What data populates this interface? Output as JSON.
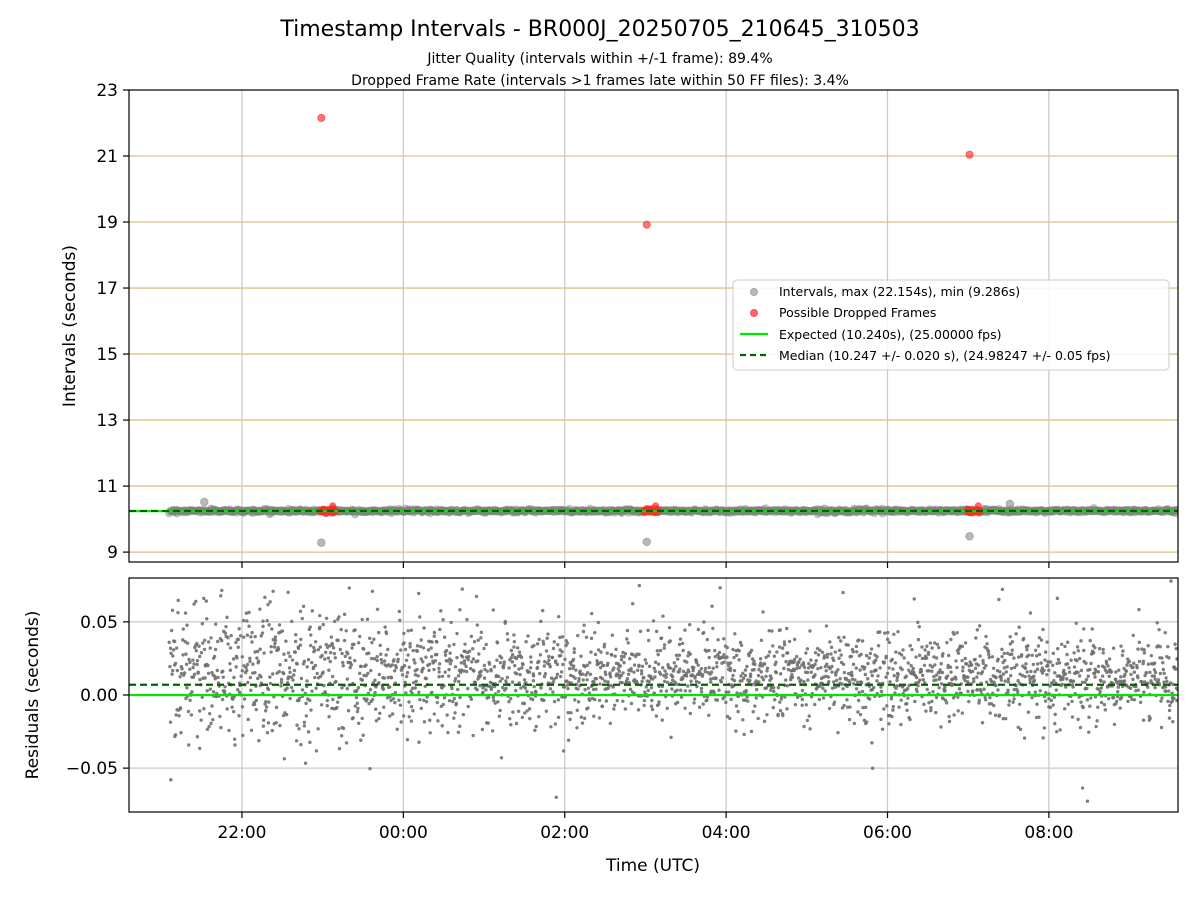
{
  "chart_data": [
    {
      "type": "scatter",
      "title": "Timestamp Intervals - BR000J_20250705_210645_310503",
      "subtitle_lines": [
        "Jitter Quality (intervals within +/-1 frame): 89.4%",
        "Dropped Frame Rate (intervals >1 frames late within 50 FF files): 3.4%"
      ],
      "ylabel": "Intervals (seconds)",
      "ylim": [
        8.7,
        23
      ],
      "yticks": [
        "9",
        "11",
        "13",
        "15",
        "17",
        "19",
        "21",
        "23"
      ],
      "y_gridlines": [
        9,
        11,
        13,
        15,
        17,
        19,
        21
      ],
      "x_range_hours": [
        20.6,
        33.6
      ],
      "series": [
        {
          "name": "Intervals, max (22.154s), min (9.286s)",
          "color": "#808080",
          "time_start": "21:06",
          "time_end": "09:36",
          "typical_value": 10.247,
          "typical_spread": 0.05,
          "outliers": [
            {
              "time": "22:59",
              "value": 9.286
            },
            {
              "time": "03:01",
              "value": 9.31
            },
            {
              "time": "07:01",
              "value": 9.48
            },
            {
              "time": "21:32",
              "value": 10.52
            },
            {
              "time": "07:31",
              "value": 10.46
            }
          ]
        },
        {
          "name": "Possible Dropped Frames",
          "color": "#ff2a2a",
          "points": [
            {
              "time": "22:59",
              "value": 22.154
            },
            {
              "time": "03:01",
              "value": 18.92
            },
            {
              "time": "07:01",
              "value": 21.04
            }
          ],
          "clusters": [
            {
              "time_start": "22:58",
              "time_end": "23:09",
              "value": 10.26
            },
            {
              "time_start": "02:59",
              "time_end": "03:09",
              "value": 10.26
            },
            {
              "time_start": "06:59",
              "time_end": "07:09",
              "value": 10.26
            }
          ]
        },
        {
          "name": "Expected (10.240s), (25.00000 fps)",
          "color": "#00e600",
          "style": "solid",
          "value": 10.24
        },
        {
          "name": "Median (10.247 +/- 0.020 s), (24.98247 +/- 0.05 fps)",
          "color": "#006400",
          "style": "dashed",
          "value": 10.247
        }
      ],
      "legend_position": "center-right",
      "grid": true
    },
    {
      "type": "scatter",
      "ylabel": "Residuals (seconds)",
      "xlabel": "Time (UTC)",
      "ylim": [
        -0.08,
        0.08
      ],
      "yticks": [
        "0.05",
        "0.00",
        "−0.05"
      ],
      "xticks": [
        "22:00",
        "00:00",
        "02:00",
        "04:00",
        "06:00",
        "08:00"
      ],
      "x_range_hours": [
        20.6,
        33.6
      ],
      "series": [
        {
          "color": "#707070",
          "time_start": "21:06",
          "time_end": "09:36",
          "center_start": 0.015,
          "center_end": 0.012,
          "spread_start": 0.035,
          "spread_end": 0.02
        }
      ],
      "lines": [
        {
          "value": 0.0,
          "color": "#00e600",
          "style": "solid"
        },
        {
          "value": 0.007,
          "color": "#006400",
          "style": "dashed"
        }
      ],
      "grid": true
    }
  ]
}
